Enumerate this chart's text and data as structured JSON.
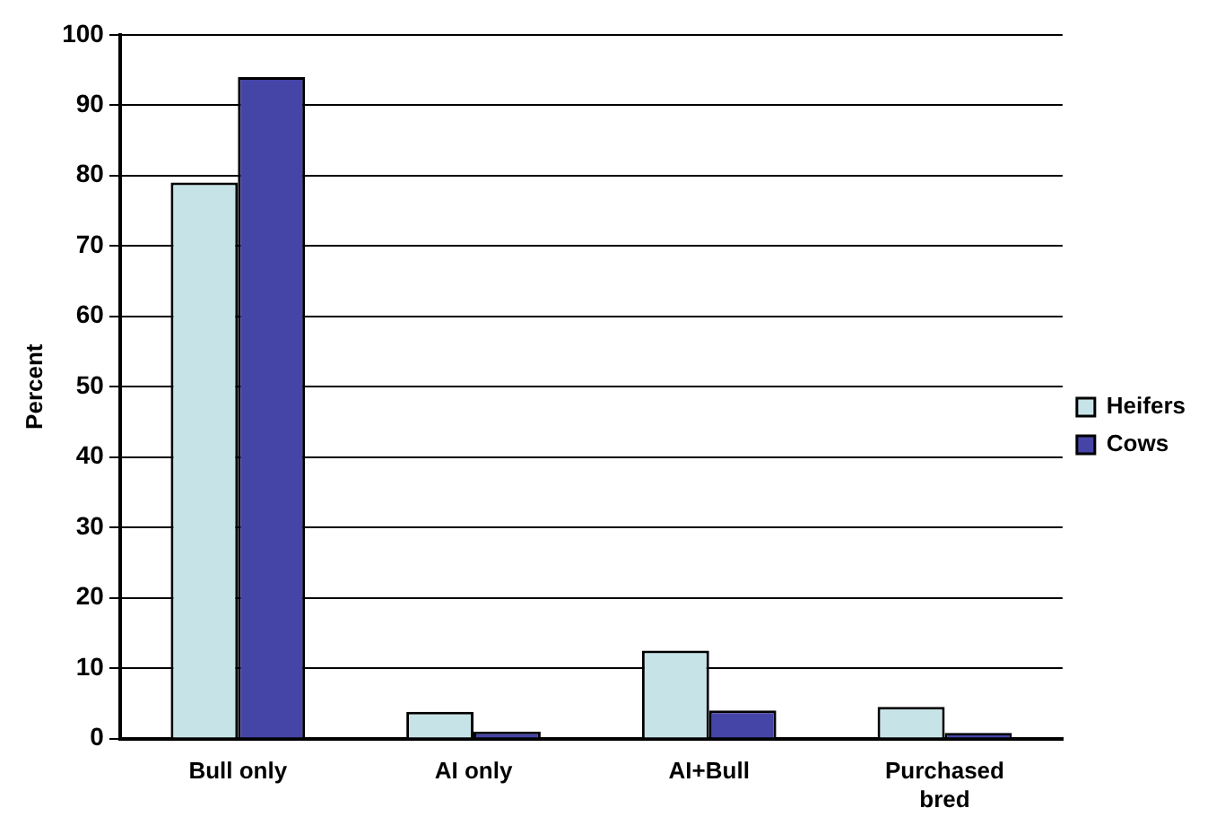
{
  "chart_data": {
    "type": "bar",
    "ylabel": "Percent",
    "categories": [
      "Bull only",
      "AI only",
      "AI+Bull",
      "Purchased bred"
    ],
    "series": [
      {
        "name": "Heifers",
        "color": "#c6e4e8",
        "values": [
          79,
          3.8,
          12.5,
          4.5
        ]
      },
      {
        "name": "Cows",
        "color": "#4545a8",
        "values": [
          94,
          1,
          4,
          0.8
        ]
      }
    ],
    "ylim": [
      0,
      100
    ],
    "yticks": [
      0,
      10,
      20,
      30,
      40,
      50,
      60,
      70,
      80,
      90,
      100
    ],
    "grid": "y",
    "legend": "right"
  }
}
